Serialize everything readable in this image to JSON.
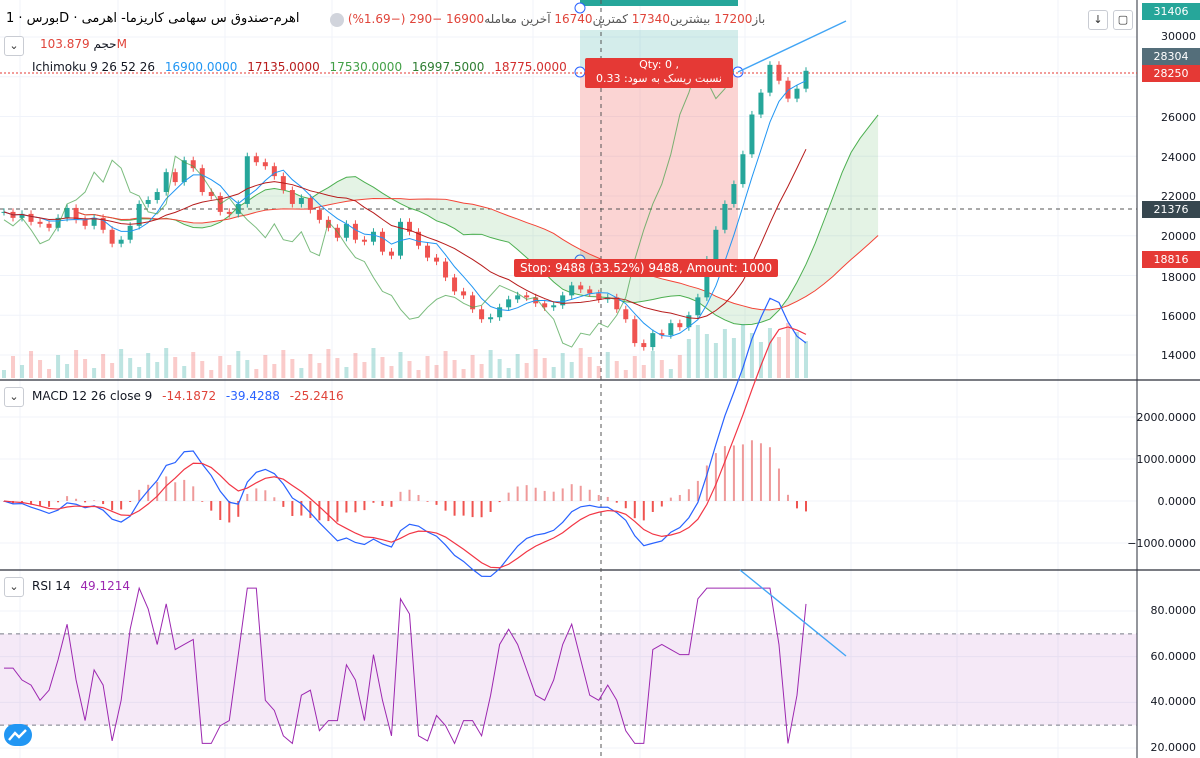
{
  "header": {
    "title": "بورس · 1D · اهرم-صندوق س سهامی کاریزما- اهرمی",
    "open_label": "باز",
    "open_value": "17200",
    "high_label": "بیشترین",
    "high_value": "17340",
    "low_label": "کمترین",
    "low_value": "16740",
    "last_label": "آخرین معامله",
    "last_value": "16900",
    "change": "−290 (−1.69%)",
    "volume_label": "حجم",
    "volume_value": "103.879M",
    "ichimoku_name": "Ichimoku 9 26 52 26",
    "ichimoku_v1": "16900.0000",
    "ichimoku_v2": "17135.0000",
    "ichimoku_v3": "17530.0000",
    "ichimoku_v4": "16997.5000",
    "ichimoku_v5": "18775.0000"
  },
  "macd": {
    "name": "MACD 12 26 close 9",
    "v1": "-14.1872",
    "v2": "-39.4288",
    "v3": "-25.2416"
  },
  "rsi": {
    "name": "RSI 14",
    "value": "49.1214"
  },
  "price_badges": {
    "top": "31406",
    "b1": "28304",
    "b2": "28250",
    "b3": "21376",
    "b4": "18816"
  },
  "order": {
    "qty": "Qty: 0 ,",
    "ratio": "نسبت ریسک به سود: 0.33",
    "stop": "Stop: 9488 (33.52%) 9488, Amount: 1000"
  },
  "colors": {
    "up": "#26a69a",
    "down": "#ef5350",
    "tenkan": "#2196f3",
    "kijun": "#b71c1c",
    "chikou": "#43a047",
    "spanA": "#4caf50",
    "spanB": "#f44336",
    "macd": "#2962ff",
    "signal": "#f23645",
    "rsi": "#9c27b0"
  },
  "chart_data": [
    {
      "type": "line",
      "title": "",
      "y_axis_ticks": [
        14000,
        16000,
        18000,
        20000,
        22000,
        24000,
        26000,
        28000,
        30000
      ],
      "ylim": [
        12800,
        31400
      ],
      "series": [
        {
          "name": "close",
          "values": [
            21200,
            20900,
            21100,
            20700,
            20600,
            20400,
            20900,
            21400,
            20800,
            20500,
            20900,
            20300,
            19600,
            19800,
            20500,
            21600,
            21800,
            22200,
            23200,
            22700,
            23800,
            23400,
            22200,
            22000,
            21200,
            21100,
            21600,
            24000,
            23700,
            23500,
            23000,
            22300,
            21600,
            21900,
            21300,
            20800,
            20400,
            19900,
            20600,
            19800,
            19700,
            20200,
            19200,
            19000,
            20700,
            20200,
            19500,
            18900,
            18700,
            17900,
            17200,
            17000,
            16300,
            15800,
            15900,
            16400,
            16800,
            17000,
            16900,
            16600,
            16400,
            16500,
            17000,
            17500,
            17300,
            17100,
            16800,
            16900,
            16300,
            15800,
            14600,
            14400,
            15100,
            15000,
            15600,
            15400,
            16000,
            16900,
            18800,
            20300,
            21600,
            22600,
            24100,
            26100,
            27200,
            28600,
            27800,
            26900,
            27400,
            28300
          ]
        },
        {
          "name": "Tenkan",
          "values": []
        },
        {
          "name": "Kijun",
          "values": []
        }
      ]
    },
    {
      "type": "line",
      "title": "MACD 12 26 close 9",
      "y_axis_ticks": [
        -1000,
        0,
        1000,
        2000
      ],
      "ylim": [
        -1650,
        2450
      ],
      "series": [
        {
          "name": "MACD",
          "values": []
        },
        {
          "name": "Signal",
          "values": []
        }
      ]
    },
    {
      "type": "line",
      "title": "RSI 14",
      "y_axis_ticks": [
        20,
        40,
        60,
        80
      ],
      "ylim": [
        16,
        96
      ],
      "series": [
        {
          "name": "RSI",
          "values": []
        }
      ]
    }
  ],
  "axis_labels": {
    "price": [
      "30000",
      "28000",
      "26000",
      "24000",
      "22000",
      "20000",
      "18000",
      "16000",
      "14000"
    ],
    "macd": [
      "2000.0000",
      "1000.0000",
      "0.0000",
      "−1000.0000"
    ],
    "rsi": [
      "80.0000",
      "60.0000",
      "40.0000",
      "20.0000"
    ]
  }
}
